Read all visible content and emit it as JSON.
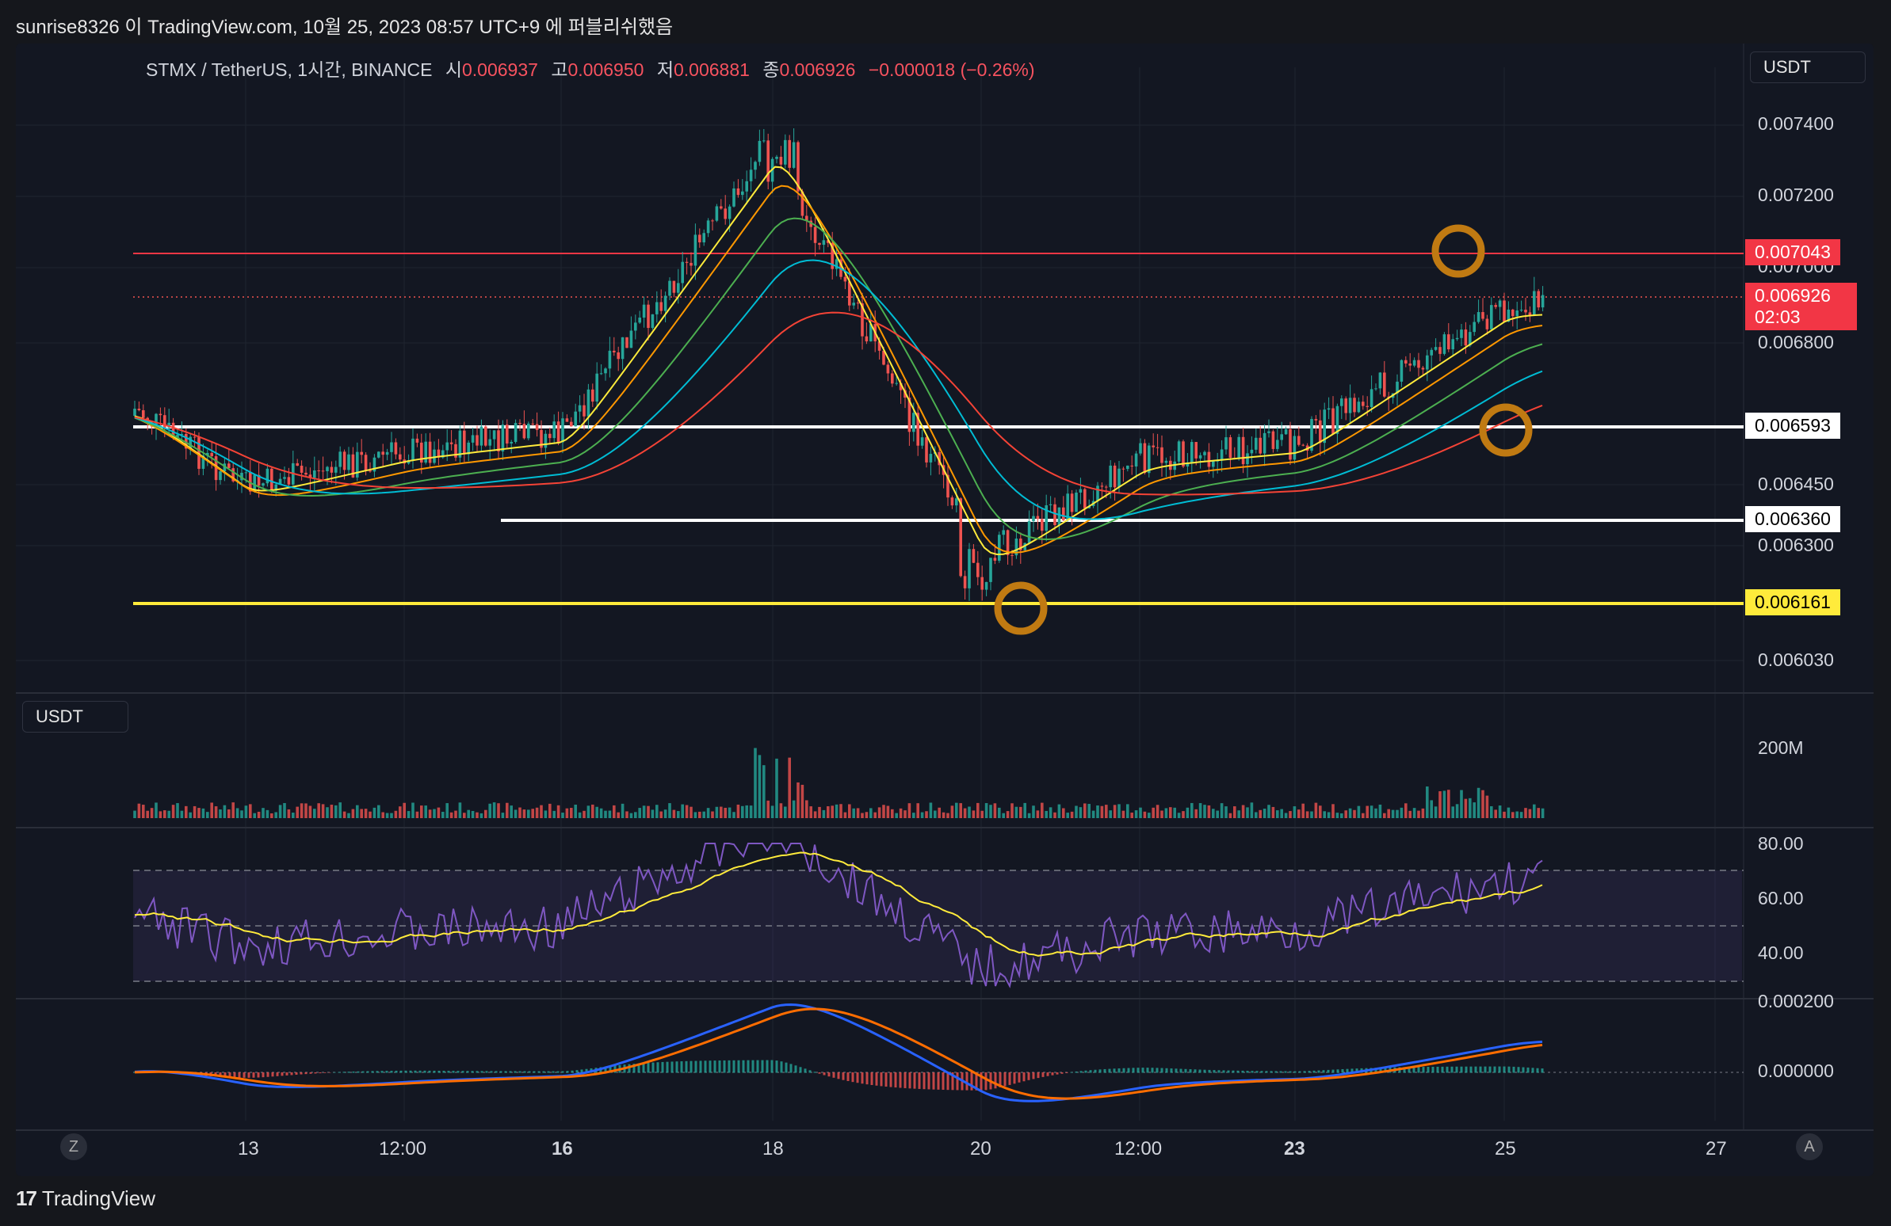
{
  "header": {
    "caption": "sunrise8326 이 TradingView.com, 10월 25, 2023 08:57 UTC+9 에 퍼블리쉬했음"
  },
  "legend": {
    "symbol": "STMX / TetherUS, 1시간, BINANCE",
    "open_label": "시",
    "open": "0.006937",
    "high_label": "고",
    "high": "0.006950",
    "low_label": "저",
    "low": "0.006881",
    "close_label": "종",
    "close": "0.006926",
    "change": "−0.000018 (−0.26%)"
  },
  "currency_button": "USDT",
  "volume_currency_button": "USDT",
  "price_axis": [
    "0.007400",
    "0.007200",
    "0.007000",
    "0.006800",
    "0.006450",
    "0.006300",
    "0.006030"
  ],
  "price_tags": {
    "resistance": "0.007043",
    "last": "0.006926",
    "countdown": "02:03",
    "support_high": "0.006593",
    "support_mid": "0.006360",
    "support_low": "0.006161"
  },
  "volume_axis": [
    "200M"
  ],
  "rsi_axis": [
    "80.00",
    "60.00",
    "40.00"
  ],
  "macd_axis": [
    "0.000200",
    "0.000000"
  ],
  "time_axis": [
    {
      "label": "13",
      "bold": false
    },
    {
      "label": "12:00",
      "bold": false
    },
    {
      "label": "16",
      "bold": true
    },
    {
      "label": "18",
      "bold": false
    },
    {
      "label": "20",
      "bold": false
    },
    {
      "label": "12:00",
      "bold": false
    },
    {
      "label": "23",
      "bold": true
    },
    {
      "label": "25",
      "bold": false
    },
    {
      "label": "27",
      "bold": false
    }
  ],
  "nav_buttons": {
    "left": "Z",
    "right": "A"
  },
  "brand": "TradingView",
  "colors": {
    "up": "#26a69a",
    "down": "#ef5350",
    "resistance": "#f23645",
    "support": "#ffffff",
    "support_low": "#ffeb3b",
    "ma_yellow": "#ffeb3b",
    "ma_orange": "#ff9800",
    "ma_green": "#4caf50",
    "ma_cyan": "#00bcd4",
    "ma_red": "#f44336",
    "rsi": "#7e57c2",
    "rsi_ma": "#ffeb3b",
    "macd": "#2962ff",
    "signal": "#ff6d00",
    "circle": "#c07a12"
  },
  "chart_data": {
    "type": "line",
    "title": "STMX / TetherUS, 1시간, BINANCE",
    "x_labels": [
      "13",
      "12:00",
      "16",
      "18",
      "20",
      "12:00",
      "23",
      "25",
      "27"
    ],
    "price_path_approx": [
      [
        "13",
        0.0064
      ],
      [
        "12:00",
        0.0065
      ],
      [
        "16",
        0.00655
      ],
      [
        "18",
        0.00735
      ],
      [
        "20",
        0.0062
      ],
      [
        "12:00",
        0.00648
      ],
      [
        "23",
        0.00652
      ],
      [
        "25",
        0.0069
      ]
    ],
    "horizontal_levels": [
      0.007043,
      0.006593,
      0.00636,
      0.006161
    ],
    "ylim": [
      0.006,
      0.00745
    ],
    "ohlc_last": {
      "open": 0.006937,
      "high": 0.00695,
      "low": 0.006881,
      "close": 0.006926
    },
    "volume_axis_ticks": [
      "200M"
    ],
    "rsi_axis_ticks": [
      80,
      60,
      40
    ],
    "macd_axis_ticks": [
      0.0002,
      0.0
    ]
  }
}
